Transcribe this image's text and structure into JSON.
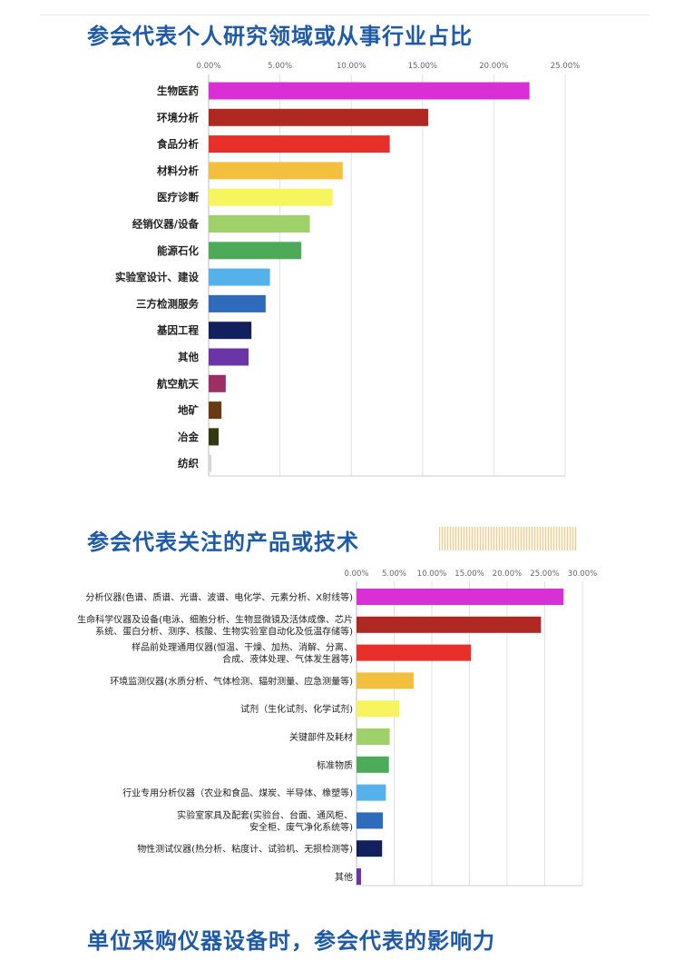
{
  "titles": {
    "section1": "参会代表个人研究领域或从事行业占比",
    "section2": "参会代表关注的产品或技术",
    "section3": "单位采购仪器设备时，参会代表的影响力"
  },
  "chart_data": [
    {
      "type": "bar",
      "orientation": "horizontal",
      "title": "参会代表个人研究领域或从事行业占比",
      "xlim": [
        0,
        0.25
      ],
      "xticks": [
        "0.00%",
        "5.00%",
        "10.00%",
        "15.00%",
        "20.00%",
        "25.00%"
      ],
      "grid": true,
      "categories": [
        {
          "label": "生物医药",
          "value": 0.225,
          "color": "#d930d6"
        },
        {
          "label": "环境分析",
          "value": 0.154,
          "color": "#b02822"
        },
        {
          "label": "食品分析",
          "value": 0.127,
          "color": "#e8302a"
        },
        {
          "label": "材料分析",
          "value": 0.094,
          "color": "#f3bf3f"
        },
        {
          "label": "医疗诊断",
          "value": 0.087,
          "color": "#f7f55e"
        },
        {
          "label": "经销仪器/设备",
          "value": 0.071,
          "color": "#9fd16b"
        },
        {
          "label": "能源石化",
          "value": 0.065,
          "color": "#4caa59"
        },
        {
          "label": "实验室设计、建设",
          "value": 0.043,
          "color": "#55b1ea"
        },
        {
          "label": "三方检测服务",
          "value": 0.04,
          "color": "#2f6bbd"
        },
        {
          "label": "基因工程",
          "value": 0.03,
          "color": "#13205e"
        },
        {
          "label": "其他",
          "value": 0.028,
          "color": "#6b35a8"
        },
        {
          "label": "航空航天",
          "value": 0.012,
          "color": "#9c2f67"
        },
        {
          "label": "地矿",
          "value": 0.009,
          "color": "#6a3a12"
        },
        {
          "label": "冶金",
          "value": 0.007,
          "color": "#333a12"
        },
        {
          "label": "纺织",
          "value": 0.002,
          "color": "#d6d6d6"
        }
      ]
    },
    {
      "type": "bar",
      "orientation": "horizontal",
      "title": "参会代表关注的产品或技术",
      "xlim": [
        0,
        0.3
      ],
      "xticks": [
        "0.00%",
        "5.00%",
        "10.00%",
        "15.00%",
        "20.00%",
        "25.00%",
        "30.00%"
      ],
      "grid": true,
      "categories": [
        {
          "label": [
            "分析仪器(色谱、质谱、光谱、波谱、电化学、元素分析、X射线等)"
          ],
          "value": 0.275,
          "color": "#d930d6"
        },
        {
          "label": [
            "生命科学仪器及设备(电泳、细胞分析、生物显微镜及活体成像、芯片",
            "系统、蛋白分析、测序、核酸、生物实验室自动化及低温存储等)"
          ],
          "value": 0.245,
          "color": "#b02822"
        },
        {
          "label": [
            "样品前处理通用仪器(恒温、干燥、加热、消解、分离、",
            "合成、液体处理、气体发生器等)"
          ],
          "value": 0.152,
          "color": "#e8302a"
        },
        {
          "label": [
            "环境监测仪器(水质分析、气体检测、辐射测量、应急测量等)"
          ],
          "value": 0.076,
          "color": "#f3bf3f"
        },
        {
          "label": [
            "试剂（生化试剂、化学试剂)"
          ],
          "value": 0.057,
          "color": "#f7f55e"
        },
        {
          "label": [
            "关键部件及耗材"
          ],
          "value": 0.044,
          "color": "#9fd16b"
        },
        {
          "label": [
            "标准物质"
          ],
          "value": 0.043,
          "color": "#4caa59"
        },
        {
          "label": [
            "行业专用分析仪器（农业和食品、煤炭、半导体、橡塑等)"
          ],
          "value": 0.039,
          "color": "#55b1ea"
        },
        {
          "label": [
            "实验室家具及配套(实验台、台面、通风柜、",
            "安全柜、废气净化系统等)"
          ],
          "value": 0.035,
          "color": "#2f6bbd"
        },
        {
          "label": [
            "物性测试仪器(热分析、粘度计、试验机、无损检测等)"
          ],
          "value": 0.034,
          "color": "#13205e"
        },
        {
          "label": [
            "其他"
          ],
          "value": 0.006,
          "color": "#6b35a8"
        }
      ]
    }
  ]
}
